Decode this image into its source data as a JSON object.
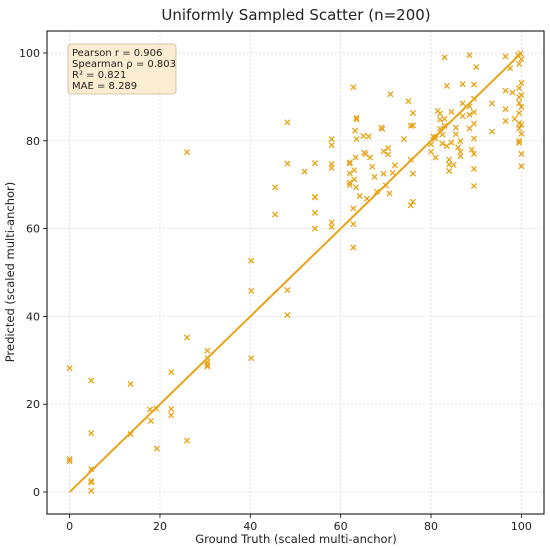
{
  "chart_data": {
    "type": "scatter",
    "title": "Uniformly Sampled Scatter (n=200)",
    "xlabel": "Ground Truth (scaled multi-anchor)",
    "ylabel": "Predicted (scaled multi-anchor)",
    "xlim": [
      -5,
      105
    ],
    "ylim": [
      -5,
      105
    ],
    "xticks": [
      0,
      20,
      40,
      60,
      80,
      100
    ],
    "yticks": [
      0,
      20,
      40,
      60,
      80,
      100
    ],
    "grid": true,
    "marker": "x",
    "color": "#e8a317",
    "stats_box": {
      "lines": [
        "Pearson r = 0.906",
        "Spearman ρ = 0.803",
        "R² = 0.821",
        "MAE = 8.289"
      ],
      "placement": "top-left"
    },
    "fit_line": {
      "x": [
        0,
        100
      ],
      "y": [
        0,
        100
      ]
    },
    "series": [
      {
        "points": [
          [
            0,
            28.2
          ],
          [
            0,
            7.5
          ],
          [
            0,
            7.0
          ],
          [
            4.8,
            25.4
          ],
          [
            4.8,
            13.4
          ],
          [
            4.8,
            5.2
          ],
          [
            4.8,
            2.5
          ],
          [
            4.8,
            2.2
          ],
          [
            4.8,
            0.3
          ],
          [
            13.5,
            24.6
          ],
          [
            13.5,
            13.2
          ],
          [
            17.8,
            18.8
          ],
          [
            18.0,
            16.2
          ],
          [
            19.2,
            19.0
          ],
          [
            19.3,
            9.9
          ],
          [
            22.5,
            27.3
          ],
          [
            22.5,
            18.9
          ],
          [
            22.5,
            17.5
          ],
          [
            26.0,
            77.4
          ],
          [
            26.0,
            35.2
          ],
          [
            26.0,
            11.7
          ],
          [
            30.5,
            32.2
          ],
          [
            30.5,
            30.5
          ],
          [
            30.5,
            29.6
          ],
          [
            30.5,
            29.0
          ],
          [
            30.5,
            28.6
          ],
          [
            40.2,
            52.7
          ],
          [
            40.2,
            45.8
          ],
          [
            40.2,
            30.5
          ],
          [
            45.5,
            69.4
          ],
          [
            45.5,
            63.2
          ],
          [
            48.2,
            84.2
          ],
          [
            48.2,
            74.8
          ],
          [
            48.2,
            46.0
          ],
          [
            48.2,
            40.3
          ],
          [
            52.0,
            73.0
          ],
          [
            54.3,
            74.9
          ],
          [
            54.3,
            67.2
          ],
          [
            54.3,
            67.1
          ],
          [
            54.3,
            63.6
          ],
          [
            54.3,
            60.0
          ],
          [
            58.0,
            80.4
          ],
          [
            58.0,
            79.0
          ],
          [
            58.0,
            74.7
          ],
          [
            58.0,
            73.8
          ],
          [
            58.0,
            61.4
          ],
          [
            58.0,
            60.4
          ],
          [
            62.0,
            75.1
          ],
          [
            62.0,
            74.8
          ],
          [
            62.0,
            72.6
          ],
          [
            62.0,
            70.5
          ],
          [
            62.0,
            69.9
          ],
          [
            62.8,
            92.2
          ],
          [
            62.8,
            64.6
          ],
          [
            62.8,
            61.0
          ],
          [
            62.8,
            55.7
          ],
          [
            63.2,
            82.3
          ],
          [
            63.5,
            85.2
          ],
          [
            63.5,
            84.9
          ],
          [
            63.5,
            80.4
          ],
          [
            63.3,
            76.2
          ],
          [
            63.0,
            73.3
          ],
          [
            63.0,
            71.2
          ],
          [
            63.4,
            69.4
          ],
          [
            64.2,
            67.4
          ],
          [
            65.0,
            81.1
          ],
          [
            65.2,
            77.3
          ],
          [
            65.5,
            77.0
          ],
          [
            65.8,
            66.8
          ],
          [
            66.2,
            81.0
          ],
          [
            66.5,
            76.2
          ],
          [
            67.0,
            74.1
          ],
          [
            67.5,
            71.8
          ],
          [
            68.0,
            68.4
          ],
          [
            69.0,
            83.0
          ],
          [
            69.2,
            82.7
          ],
          [
            69.5,
            77.6
          ],
          [
            69.5,
            72.5
          ],
          [
            70.0,
            69.8
          ],
          [
            70.5,
            78.3
          ],
          [
            70.5,
            76.9
          ],
          [
            70.8,
            68.0
          ],
          [
            71.0,
            90.6
          ],
          [
            71.5,
            72.7
          ],
          [
            72.0,
            74.4
          ],
          [
            74.0,
            80.4
          ],
          [
            75.0,
            89.0
          ],
          [
            75.5,
            83.4
          ],
          [
            75.5,
            75.7
          ],
          [
            75.5,
            65.3
          ],
          [
            76.0,
            86.3
          ],
          [
            76.0,
            83.5
          ],
          [
            76.0,
            72.5
          ],
          [
            76.0,
            66.1
          ],
          [
            80.0,
            79.2
          ],
          [
            80.0,
            77.5
          ],
          [
            80.5,
            81.0
          ],
          [
            81.0,
            80.5
          ],
          [
            81.0,
            76.2
          ],
          [
            81.5,
            86.8
          ],
          [
            82.0,
            86.2
          ],
          [
            82.0,
            84.8
          ],
          [
            82.0,
            82.7
          ],
          [
            82.5,
            81.4
          ],
          [
            82.5,
            79.4
          ],
          [
            83.0,
            85.0
          ],
          [
            83.0,
            83.4
          ],
          [
            83.0,
            99.0
          ],
          [
            83.5,
            92.5
          ],
          [
            83.5,
            78.8
          ],
          [
            84.0,
            75.7
          ],
          [
            84.0,
            74.6
          ],
          [
            84.0,
            73.1
          ],
          [
            84.5,
            86.6
          ],
          [
            84.5,
            79.6
          ],
          [
            85.0,
            74.5
          ],
          [
            85.5,
            83.0
          ],
          [
            85.5,
            81.5
          ],
          [
            86.0,
            78.5
          ],
          [
            86.5,
            79.9
          ],
          [
            86.5,
            77.5
          ],
          [
            86.5,
            76.5
          ],
          [
            87.0,
            92.9
          ],
          [
            87.0,
            88.5
          ],
          [
            87.0,
            85.6
          ],
          [
            88.5,
            99.5
          ],
          [
            88.5,
            87.8
          ],
          [
            88.5,
            85.9
          ],
          [
            88.5,
            82.8
          ],
          [
            89.0,
            78.0
          ],
          [
            89.5,
            92.8
          ],
          [
            89.5,
            89.6
          ],
          [
            89.5,
            86.5
          ],
          [
            89.5,
            83.9
          ],
          [
            89.5,
            80.5
          ],
          [
            89.5,
            77.0
          ],
          [
            89.5,
            73.6
          ],
          [
            89.5,
            69.7
          ],
          [
            90.0,
            96.8
          ],
          [
            93.5,
            88.5
          ],
          [
            93.5,
            82.1
          ],
          [
            96.5,
            99.2
          ],
          [
            96.5,
            91.4
          ],
          [
            96.5,
            87.2
          ],
          [
            96.5,
            84.5
          ],
          [
            97.5,
            96.5
          ],
          [
            98.0,
            91.0
          ],
          [
            98.5,
            85.0
          ],
          [
            99.2,
            99.5
          ],
          [
            99.5,
            97.5
          ],
          [
            99.5,
            92.0
          ],
          [
            99.5,
            89.9
          ],
          [
            99.5,
            88.6
          ],
          [
            99.5,
            86.3
          ],
          [
            99.5,
            84.0
          ],
          [
            99.5,
            82.8
          ],
          [
            99.5,
            80.0
          ],
          [
            99.5,
            79.5
          ],
          [
            99.8,
            99.9
          ],
          [
            100,
            98.6
          ],
          [
            100,
            93.2
          ],
          [
            100,
            90.4
          ],
          [
            100,
            87.7
          ],
          [
            100,
            83.7
          ],
          [
            100,
            81.6
          ],
          [
            100,
            77.0
          ],
          [
            100,
            74.2
          ]
        ]
      }
    ]
  }
}
